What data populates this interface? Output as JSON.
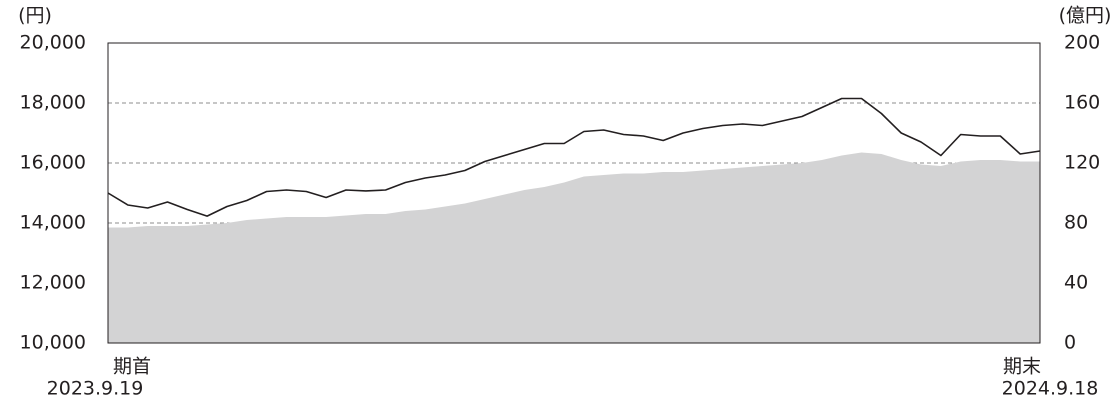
{
  "chart_data": {
    "type": "line",
    "y_unit": "(円)",
    "y2_unit": "(億円)",
    "x_start_label": "期首",
    "x_end_label": "期末",
    "categories": [
      "2023.9.19",
      null,
      null,
      null,
      null,
      null,
      null,
      null,
      null,
      null,
      null,
      null,
      null,
      null,
      null,
      null,
      null,
      null,
      null,
      null,
      null,
      null,
      null,
      null,
      null,
      null,
      null,
      null,
      null,
      null,
      null,
      null,
      null,
      null,
      null,
      null,
      null,
      null,
      null,
      null,
      null,
      null,
      null,
      null,
      null,
      null,
      null,
      "2024.9.18"
    ],
    "ylim": [
      10000,
      20000
    ],
    "yticks": [
      {
        "value": 10000,
        "label": "10,000"
      },
      {
        "value": 12000,
        "label": "12,000"
      },
      {
        "value": 14000,
        "label": "14,000"
      },
      {
        "value": 16000,
        "label": "16,000"
      },
      {
        "value": 18000,
        "label": "18,000"
      },
      {
        "value": 20000,
        "label": "20,000"
      }
    ],
    "y2lim": [
      0,
      200
    ],
    "y2ticks": [
      0,
      40,
      80,
      120,
      160,
      200
    ],
    "grid": true,
    "series": [
      {
        "type": "area",
        "axis": "y2",
        "color": "#d3d3d4",
        "values": [
          77,
          77,
          78,
          78,
          78,
          79,
          80,
          82,
          83,
          84,
          84,
          84,
          85,
          86,
          86,
          88,
          89,
          91,
          93,
          96,
          99,
          102,
          104,
          107,
          111,
          112,
          113,
          113,
          114,
          114,
          115,
          116,
          117,
          118,
          119,
          120,
          122,
          125,
          127,
          126,
          122,
          119,
          118,
          121,
          122,
          122,
          121,
          121
        ]
      },
      {
        "type": "line",
        "axis": "y",
        "color": "#231f20",
        "values": [
          15000,
          14600,
          14500,
          14700,
          14450,
          14230,
          14550,
          14750,
          15050,
          15100,
          15050,
          14850,
          15100,
          15070,
          15100,
          15350,
          15500,
          15600,
          15750,
          16050,
          16250,
          16450,
          16650,
          16650,
          17050,
          17100,
          16950,
          16900,
          16750,
          17000,
          17150,
          17250,
          17300,
          17250,
          17400,
          17550,
          17850,
          18150,
          18150,
          17650,
          17000,
          16700,
          16250,
          16950,
          16900,
          16900,
          16300,
          16400
        ]
      }
    ]
  }
}
